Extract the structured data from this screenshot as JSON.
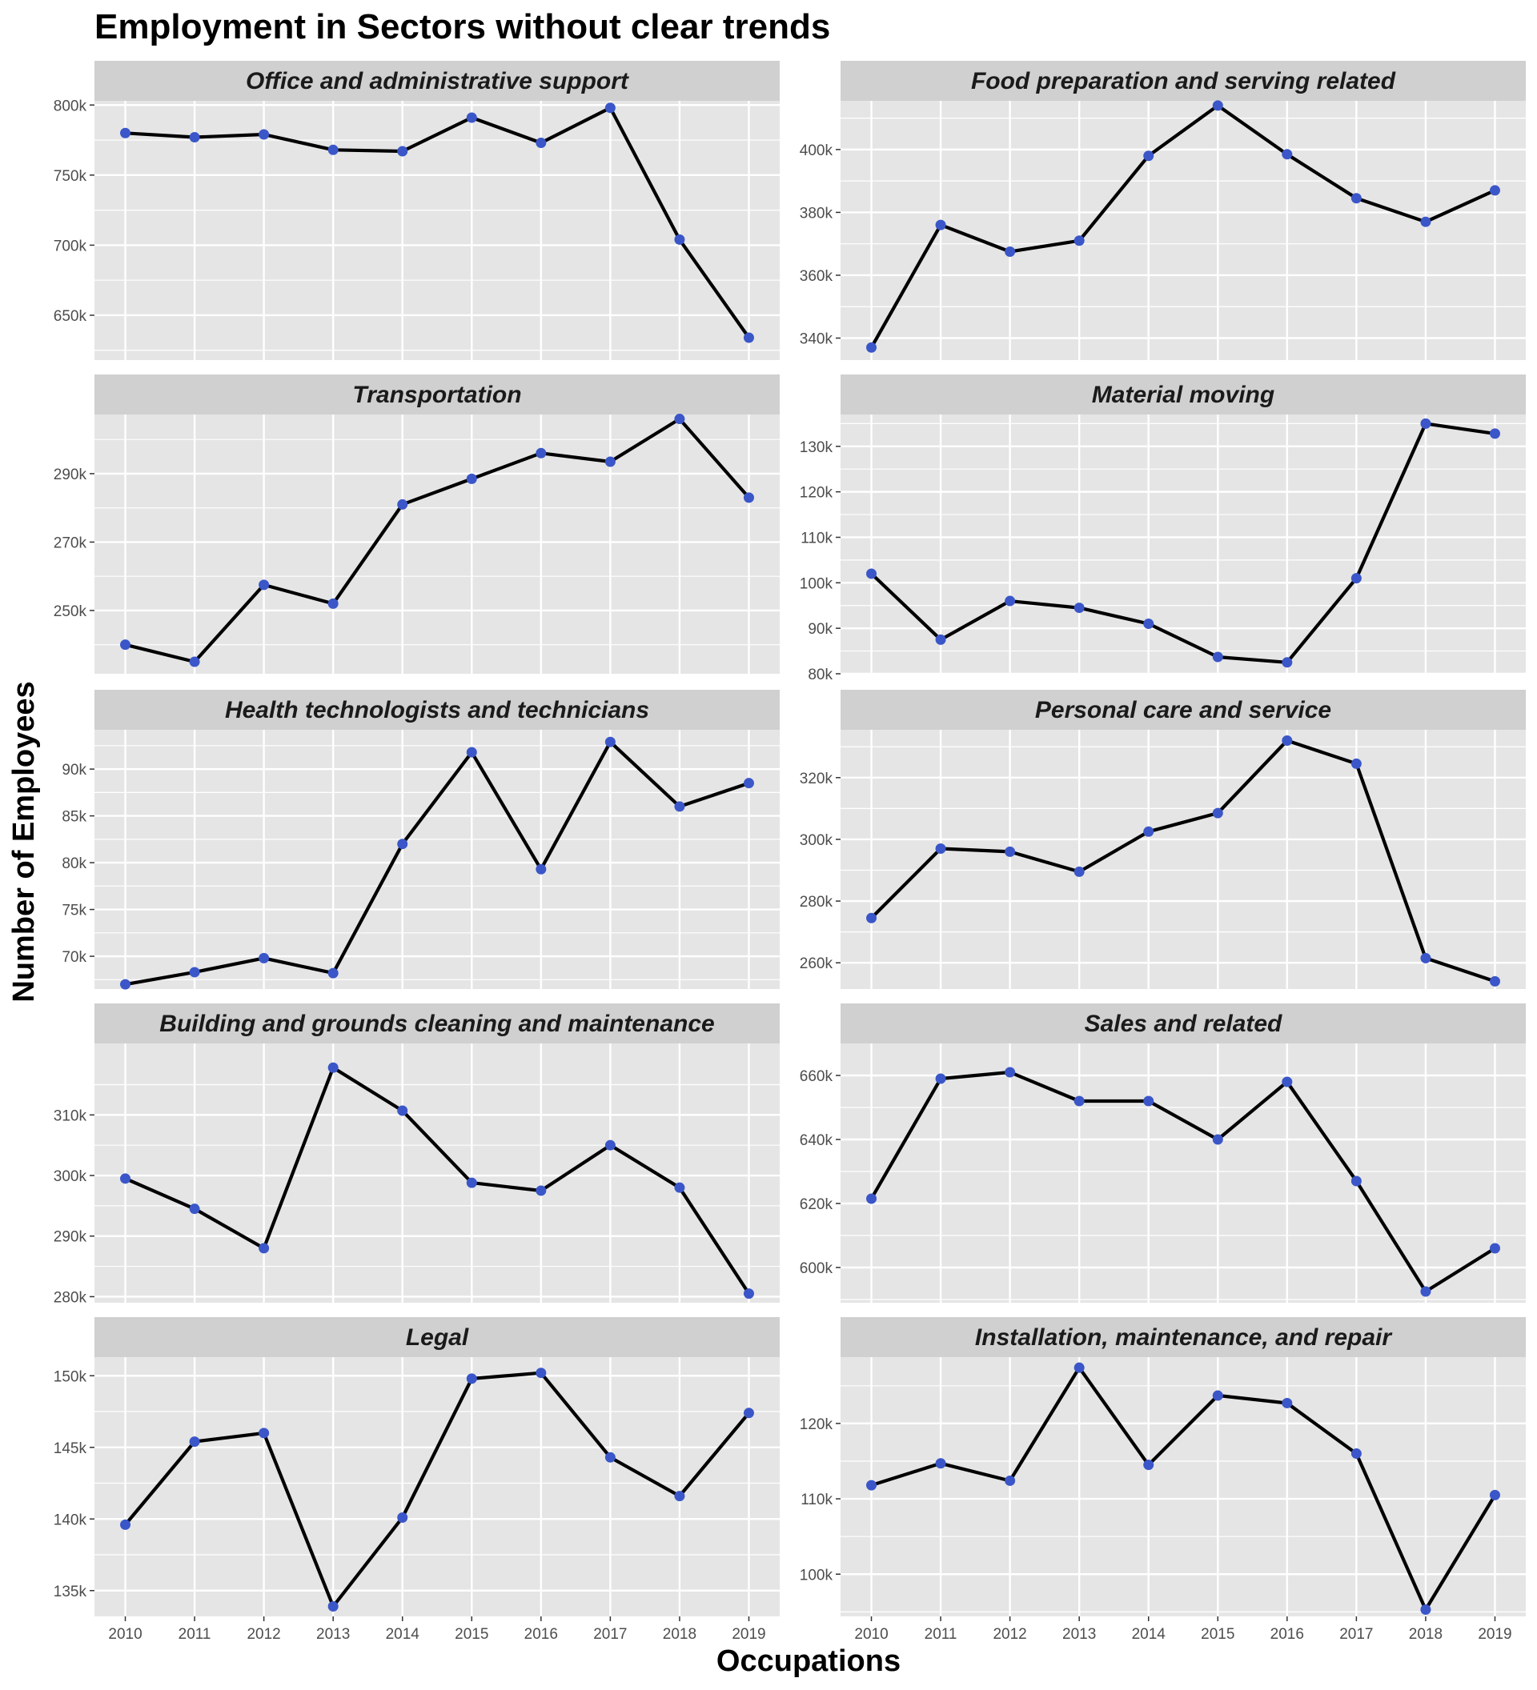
{
  "title": "Employment in Sectors without clear trends",
  "xlabel": "Occupations",
  "ylabel": "Number of Employees",
  "colors": {
    "panel_bg": "#e5e5e5",
    "strip_bg": "#d0d0d0",
    "grid": "#ffffff",
    "line": "#000000",
    "point": "#3a56c8"
  },
  "chart_data": {
    "type": "line",
    "layout": "facet-grid 5 rows x 2 columns",
    "x": [
      2010,
      2011,
      2012,
      2013,
      2014,
      2015,
      2016,
      2017,
      2018,
      2019
    ],
    "x_tick_labels": [
      "2010",
      "2011",
      "2012",
      "2013",
      "2014",
      "2015",
      "2016",
      "2017",
      "2018",
      "2019"
    ],
    "grid": true,
    "legend": "none",
    "panels": [
      {
        "name": "Office and administrative support",
        "ylim": [
          618000,
          803000
        ],
        "yticks": [
          650000,
          700000,
          750000,
          800000
        ],
        "ytick_labels": [
          "650k",
          "700k",
          "750k",
          "800k"
        ],
        "values": [
          780000,
          777000,
          779000,
          768000,
          767000,
          791000,
          773000,
          798000,
          704000,
          634000
        ]
      },
      {
        "name": "Food preparation and serving related",
        "ylim": [
          333000,
          415500
        ],
        "yticks": [
          340000,
          360000,
          380000,
          400000
        ],
        "ytick_labels": [
          "340k",
          "360k",
          "380k",
          "400k"
        ],
        "values": [
          337000,
          376000,
          367500,
          371000,
          398000,
          414000,
          398500,
          384500,
          377000,
          387000
        ]
      },
      {
        "name": "Transportation",
        "ylim": [
          231500,
          307300
        ],
        "yticks": [
          250000,
          270000,
          290000
        ],
        "ytick_labels": [
          "250k",
          "270k",
          "290k"
        ],
        "values": [
          240000,
          235000,
          257500,
          252000,
          281000,
          288500,
          296000,
          293500,
          306000,
          283000
        ]
      },
      {
        "name": "Material moving",
        "ylim": [
          80000,
          137000
        ],
        "yticks": [
          80000,
          90000,
          100000,
          110000,
          120000,
          130000
        ],
        "ytick_labels": [
          "80k",
          "90k",
          "100k",
          "110k",
          "120k",
          "130k"
        ],
        "values": [
          102000,
          87500,
          96000,
          94500,
          91000,
          83700,
          82500,
          101000,
          135000,
          132800
        ]
      },
      {
        "name": "Health technologists and technicians",
        "ylim": [
          66500,
          94200
        ],
        "yticks": [
          70000,
          75000,
          80000,
          85000,
          90000
        ],
        "ytick_labels": [
          "70k",
          "75k",
          "80k",
          "85k",
          "90k"
        ],
        "values": [
          67000,
          68300,
          69800,
          68200,
          82000,
          91800,
          79300,
          92900,
          86000,
          88500
        ]
      },
      {
        "name": "Personal care and service",
        "ylim": [
          251500,
          335500
        ],
        "yticks": [
          260000,
          280000,
          300000,
          320000
        ],
        "ytick_labels": [
          "260k",
          "280k",
          "300k",
          "320k"
        ],
        "values": [
          274500,
          297000,
          296000,
          289500,
          302500,
          308500,
          332000,
          324500,
          261500,
          254000
        ]
      },
      {
        "name": "Building and grounds cleaning and maintenance",
        "ylim": [
          279000,
          321800
        ],
        "yticks": [
          280000,
          290000,
          300000,
          310000
        ],
        "ytick_labels": [
          "280k",
          "290k",
          "300k",
          "310k"
        ],
        "values": [
          299500,
          294500,
          288000,
          317800,
          310700,
          298800,
          297500,
          305000,
          298000,
          280500
        ]
      },
      {
        "name": "Sales and related",
        "ylim": [
          589000,
          670000
        ],
        "yticks": [
          600000,
          620000,
          640000,
          660000
        ],
        "ytick_labels": [
          "600k",
          "620k",
          "640k",
          "660k"
        ],
        "values": [
          621500,
          659000,
          661000,
          652000,
          652000,
          640000,
          658000,
          627000,
          592500,
          606000
        ]
      },
      {
        "name": "Legal",
        "ylim": [
          133200,
          151300
        ],
        "yticks": [
          135000,
          140000,
          145000,
          150000
        ],
        "ytick_labels": [
          "135k",
          "140k",
          "145k",
          "150k"
        ],
        "values": [
          139600,
          145400,
          146000,
          133900,
          140100,
          149800,
          150200,
          144300,
          141600,
          147400
        ]
      },
      {
        "name": "Installation, maintenance, and repair",
        "ylim": [
          94400,
          128800
        ],
        "yticks": [
          100000,
          110000,
          120000
        ],
        "ytick_labels": [
          "100k",
          "110k",
          "120k"
        ],
        "values": [
          111800,
          114700,
          112400,
          127400,
          114500,
          123700,
          122700,
          116000,
          95300,
          110500
        ]
      }
    ]
  }
}
